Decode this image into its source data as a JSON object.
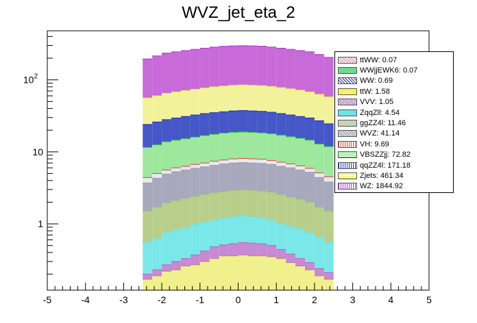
{
  "chart_data": {
    "type": "bar",
    "title": "WVZ_jet_eta_2",
    "xlabel": "",
    "ylabel": "",
    "xlim": [
      -5,
      5
    ],
    "ylim": [
      0.12,
      480
    ],
    "yscale": "log",
    "stacked": true,
    "x_ticks": [
      "-5",
      "-4",
      "-3",
      "-2",
      "-1",
      "0",
      "1",
      "2",
      "3",
      "4",
      "5"
    ],
    "y_ticks": [
      {
        "value": 1,
        "label": "1"
      },
      {
        "value": 10,
        "label": "10"
      },
      {
        "value": 100,
        "label": "10",
        "sup": "2"
      }
    ],
    "bin_edges": [
      -2.5,
      -2.25,
      -2.0,
      -1.75,
      -1.5,
      -1.25,
      -1.0,
      -0.75,
      -0.5,
      -0.25,
      0.0,
      0.25,
      0.5,
      0.75,
      1.0,
      1.25,
      1.5,
      1.75,
      2.0,
      2.25,
      2.5
    ],
    "stack_tops": [
      {
        "name": "ttWW",
        "values": [
          0.17,
          0.19,
          0.22,
          0.23,
          0.26,
          0.27,
          0.3,
          0.33,
          0.36,
          0.36,
          0.37,
          0.36,
          0.36,
          0.35,
          0.33,
          0.29,
          0.26,
          0.23,
          0.19,
          0.17
        ]
      },
      {
        "name": "WWjjEWK6",
        "values": [
          0.17,
          0.19,
          0.22,
          0.23,
          0.26,
          0.27,
          0.3,
          0.33,
          0.36,
          0.36,
          0.37,
          0.36,
          0.36,
          0.35,
          0.33,
          0.29,
          0.26,
          0.23,
          0.19,
          0.17
        ]
      },
      {
        "name": "WW",
        "values": [
          0.17,
          0.19,
          0.22,
          0.23,
          0.26,
          0.27,
          0.3,
          0.33,
          0.36,
          0.36,
          0.37,
          0.36,
          0.36,
          0.35,
          0.33,
          0.29,
          0.26,
          0.23,
          0.19,
          0.17
        ]
      },
      {
        "name": "ttW",
        "values": [
          0.17,
          0.19,
          0.22,
          0.23,
          0.26,
          0.27,
          0.3,
          0.33,
          0.36,
          0.36,
          0.37,
          0.36,
          0.36,
          0.35,
          0.33,
          0.29,
          0.26,
          0.23,
          0.19,
          0.17
        ]
      },
      {
        "name": "VVV",
        "values": [
          0.2,
          0.23,
          0.27,
          0.3,
          0.33,
          0.37,
          0.42,
          0.48,
          0.51,
          0.53,
          0.55,
          0.54,
          0.53,
          0.5,
          0.44,
          0.38,
          0.33,
          0.29,
          0.24,
          0.21
        ]
      },
      {
        "name": "ZqqZll",
        "values": [
          0.55,
          0.62,
          0.75,
          0.82,
          0.88,
          0.98,
          1.05,
          1.12,
          1.2,
          1.25,
          1.28,
          1.25,
          1.2,
          1.12,
          1.0,
          0.92,
          0.85,
          0.75,
          0.65,
          0.55
        ]
      },
      {
        "name": "ggZZ4l",
        "values": [
          1.5,
          1.7,
          1.95,
          2.1,
          2.25,
          2.4,
          2.55,
          2.7,
          2.8,
          2.9,
          2.95,
          2.9,
          2.85,
          2.75,
          2.55,
          2.35,
          2.2,
          2.0,
          1.7,
          1.5
        ]
      },
      {
        "name": "WVZ",
        "values": [
          3.7,
          4.3,
          4.9,
          5.3,
          5.6,
          5.9,
          6.2,
          6.5,
          6.8,
          7.0,
          7.1,
          7.0,
          6.9,
          6.7,
          6.3,
          6.0,
          5.6,
          5.2,
          4.4,
          3.8
        ]
      },
      {
        "name": "VH",
        "values": [
          4.4,
          5.0,
          5.6,
          6.0,
          6.3,
          6.7,
          7.0,
          7.4,
          7.7,
          8.0,
          8.1,
          8.0,
          7.9,
          7.6,
          7.2,
          6.8,
          6.4,
          5.9,
          5.1,
          4.5
        ]
      },
      {
        "name": "VBSZZjj",
        "values": [
          11.5,
          12.5,
          13.8,
          14.5,
          15.2,
          16.0,
          16.8,
          17.5,
          18.2,
          18.6,
          18.8,
          18.6,
          18.3,
          17.8,
          17.0,
          16.2,
          15.4,
          14.5,
          12.8,
          11.8
        ]
      },
      {
        "name": "qqZZ4l",
        "values": [
          24,
          26,
          28,
          29.5,
          31,
          32.5,
          34,
          35,
          36,
          37,
          37.5,
          37,
          36.5,
          35.5,
          34,
          32.5,
          31,
          29.5,
          27,
          24.5
        ]
      },
      {
        "name": "Zjets",
        "values": [
          56,
          60,
          65,
          68,
          71,
          74,
          77,
          80,
          82,
          84,
          85,
          84,
          83,
          81,
          78,
          75,
          72,
          68,
          63,
          58
        ]
      },
      {
        "name": "WZ",
        "values": [
          195,
          215,
          235,
          245,
          255,
          265,
          275,
          285,
          292,
          296,
          298,
          296,
          293,
          285,
          275,
          265,
          255,
          245,
          225,
          205
        ]
      }
    ],
    "legend_position": "top-right",
    "legend": [
      {
        "label": "ttWW: 0.07",
        "color": "#cc7a8c",
        "pattern": "cross"
      },
      {
        "label": "WWjjEWK6: 0.07",
        "color": "#6fd88a",
        "pattern": "solid"
      },
      {
        "label": "WW: 0.69",
        "color": "#1f2f8a",
        "pattern": "cross"
      },
      {
        "label": "ttW: 1.58",
        "color": "#f5f26a",
        "pattern": "solid"
      },
      {
        "label": "VVV: 1.05",
        "color": "#b068c2",
        "pattern": "diag"
      },
      {
        "label": "ZqqZll: 4.54",
        "color": "#6fe3e3",
        "pattern": "solid"
      },
      {
        "label": "ggZZ4l: 11.46",
        "color": "#a5c07a",
        "pattern": "diag"
      },
      {
        "label": "WVZ: 41.14",
        "color": "#9b9bb0",
        "pattern": "diag"
      },
      {
        "label": "VH: 9.69",
        "color": "#e03c3c",
        "pattern": "vert"
      },
      {
        "label": "VBSZZjj: 72.82",
        "color": "#3cd23c",
        "pattern": "horiz"
      },
      {
        "label": "qqZZ4l: 171.18",
        "color": "#1a2fb8",
        "pattern": "vert"
      },
      {
        "label": "Zjets: 461.34",
        "color": "#e8e84a",
        "pattern": "horiz"
      },
      {
        "label": "WZ: 1844.92",
        "color": "#b030c8",
        "pattern": "vert"
      }
    ],
    "fills": {
      "ttWW": "#f0f08c",
      "WWjjEWK6": "#f0f08c",
      "WW": "#f0f08c",
      "ttW": "#f5f58a",
      "VVV": "#c88ad4",
      "ZqqZll": "#7ae8e8",
      "ggZZ4l": "#b8cf8c",
      "WVZ": "#a9a9bd",
      "VH": "#e9e9ef",
      "VBSZZjj": "#9de89d",
      "qqZZ4l": "#4658c8",
      "Zjets": "#f2f29a",
      "WZ": "#c86ad8"
    }
  }
}
